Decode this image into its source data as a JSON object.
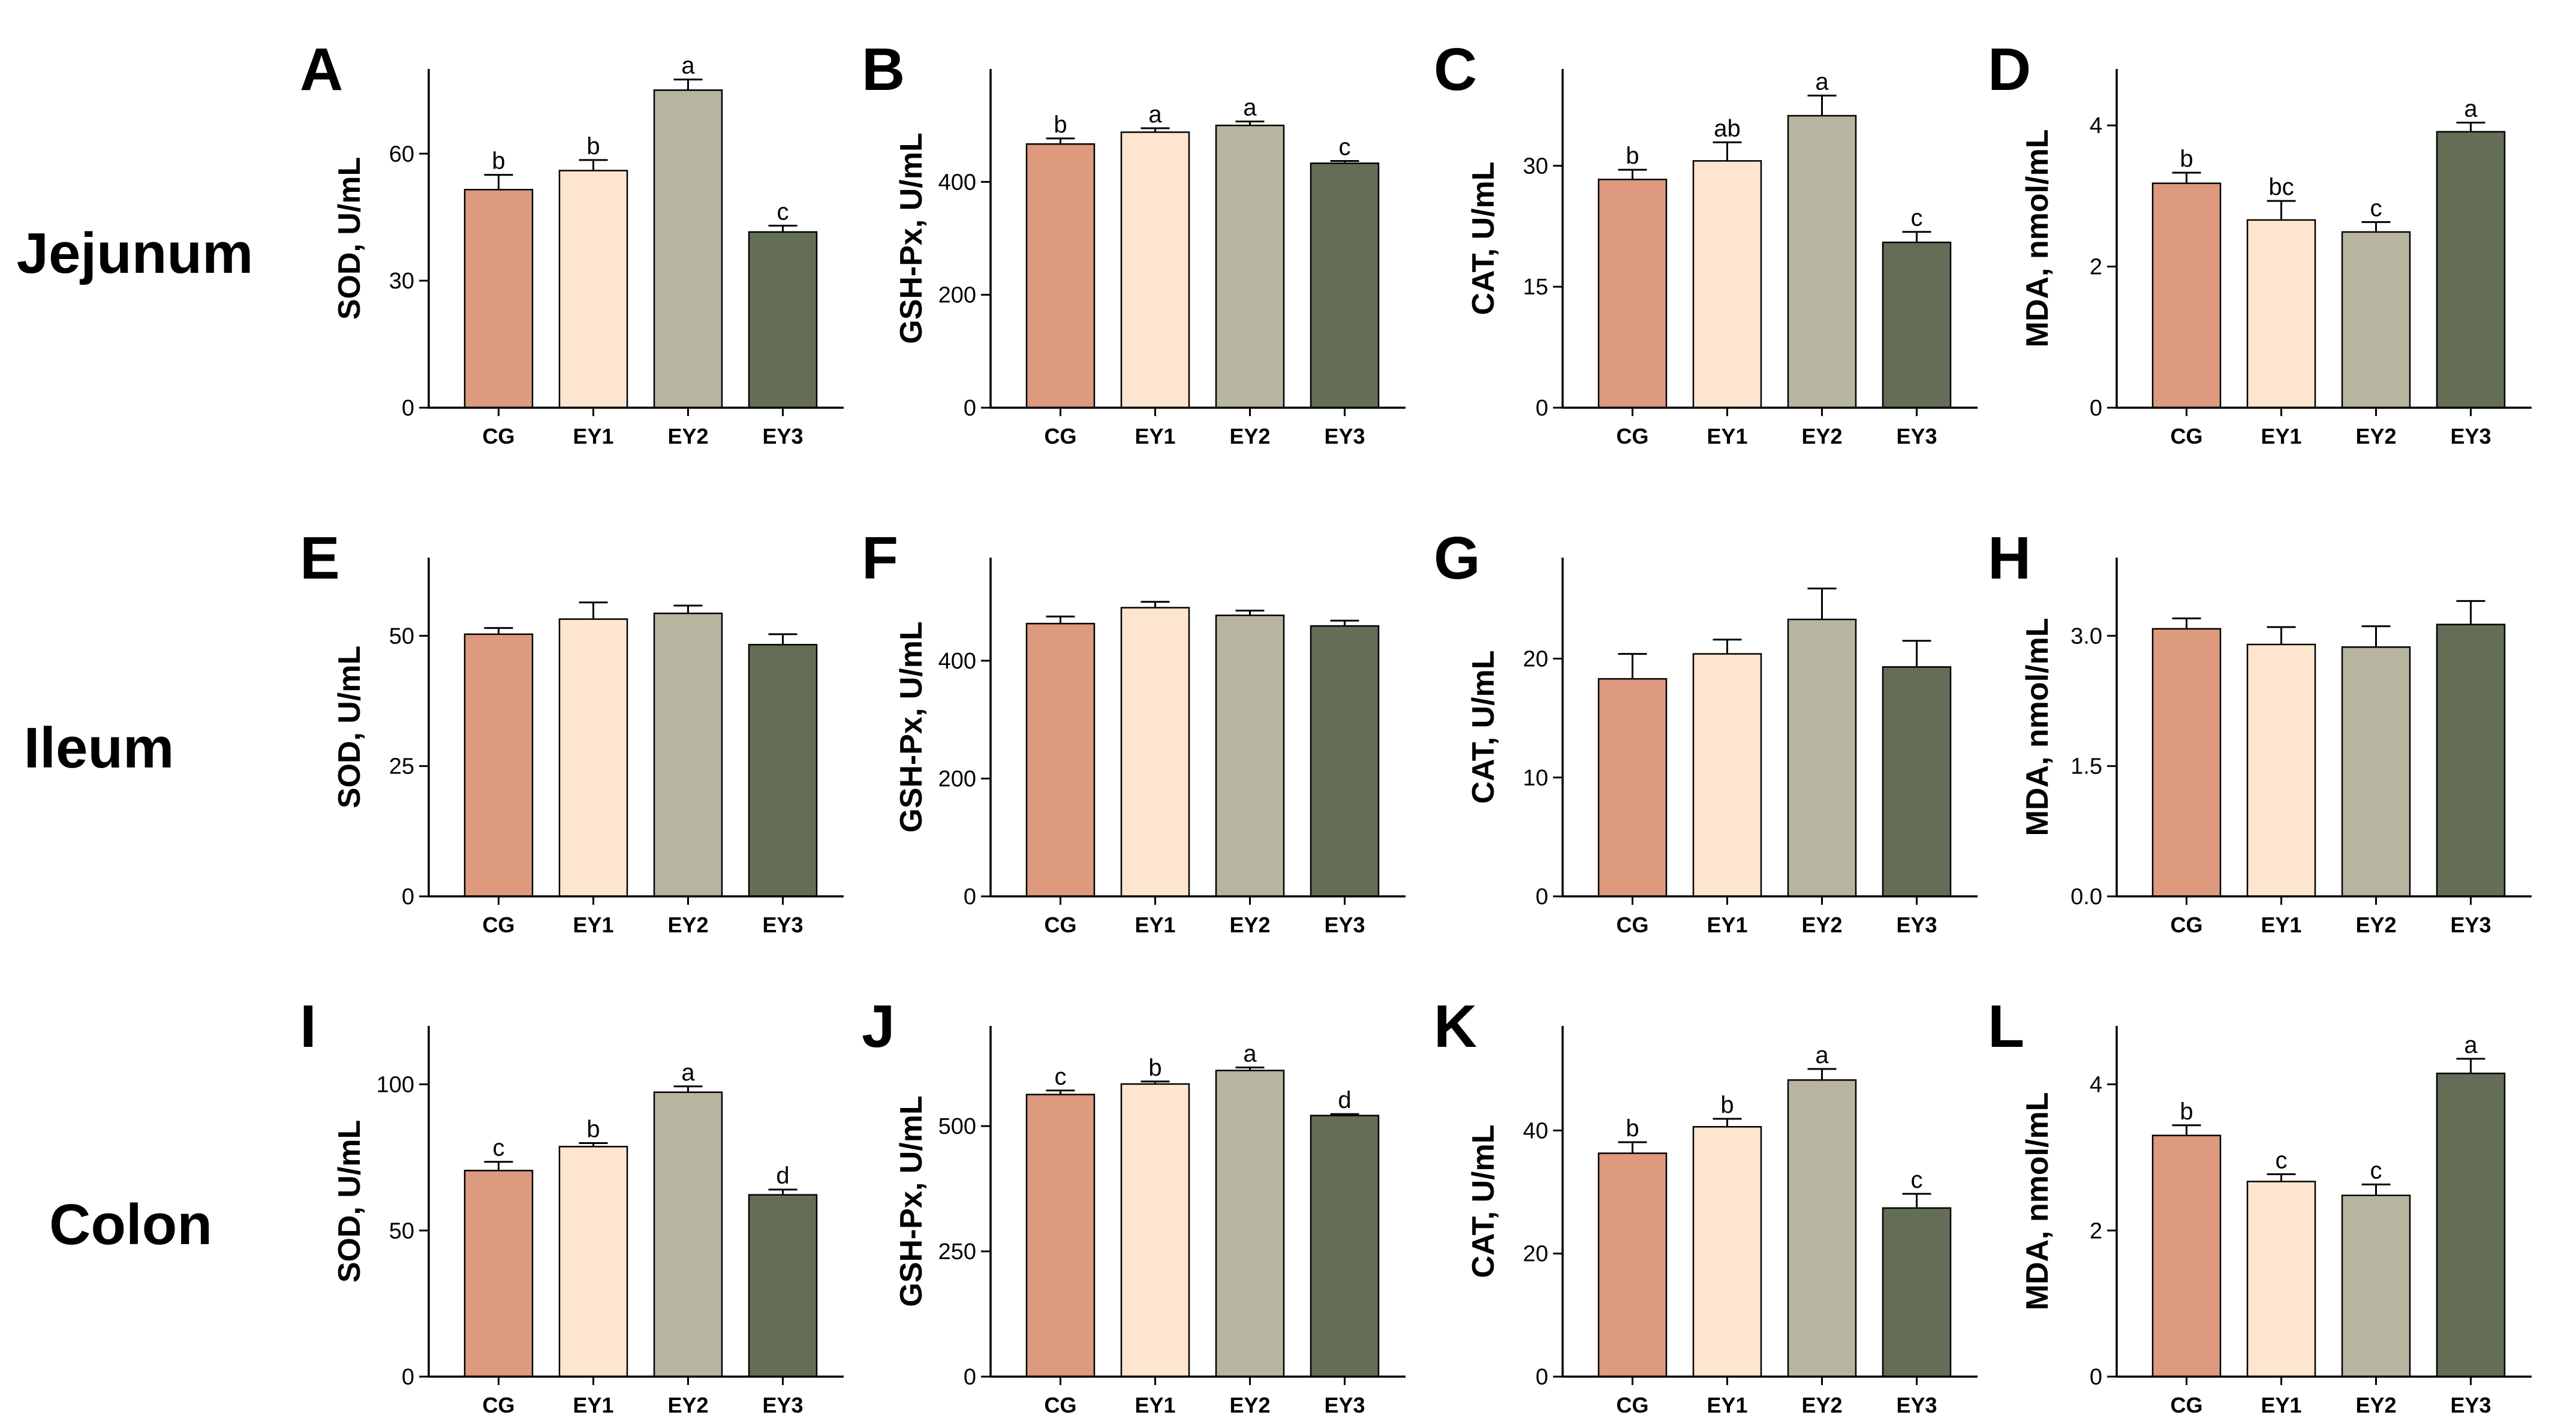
{
  "colors": {
    "CG": "#dd9a7e",
    "EY1": "#fde5cf",
    "EY2": "#b7b5a0",
    "EY3": "#646e56",
    "outline": "#000000"
  },
  "rows": [
    {
      "label": "Jejunum",
      "row": 0
    },
    {
      "label": "Ileum",
      "row": 1
    },
    {
      "label": "Colon",
      "row": 2
    }
  ],
  "chart_data": [
    {
      "type": "bar",
      "panel": "A",
      "row": 0,
      "col": 0,
      "ylabel": "SOD, U/mL",
      "categories": [
        "CG",
        "EY1",
        "EY2",
        "EY3"
      ],
      "values": [
        51.5,
        56,
        75,
        41.5
      ],
      "errors": [
        3.5,
        2.5,
        2.5,
        1.5
      ],
      "letters": [
        "b",
        "b",
        "a",
        "c"
      ],
      "ylim": [
        0,
        80
      ],
      "yticks": [
        0,
        30,
        60
      ],
      "ytick_labels": [
        "0",
        "30",
        "60"
      ]
    },
    {
      "type": "bar",
      "panel": "B",
      "row": 0,
      "col": 1,
      "ylabel": "GSH-Px, U/mL",
      "categories": [
        "CG",
        "EY1",
        "EY2",
        "EY3"
      ],
      "values": [
        467,
        488,
        500,
        433
      ],
      "errors": [
        10,
        7,
        7,
        4
      ],
      "letters": [
        "b",
        "a",
        "a",
        "c"
      ],
      "ylim": [
        0,
        600
      ],
      "yticks": [
        0,
        200,
        400
      ],
      "ytick_labels": [
        "0",
        "200",
        "400"
      ]
    },
    {
      "type": "bar",
      "panel": "C",
      "row": 0,
      "col": 2,
      "ylabel": "CAT, U/mL",
      "categories": [
        "CG",
        "EY1",
        "EY2",
        "EY3"
      ],
      "values": [
        28.3,
        30.6,
        36.2,
        20.5
      ],
      "errors": [
        1.2,
        2.3,
        2.5,
        1.3
      ],
      "letters": [
        "b",
        "ab",
        "a",
        "c"
      ],
      "ylim": [
        0,
        42
      ],
      "yticks": [
        0,
        15,
        30
      ],
      "ytick_labels": [
        "0",
        "15",
        "30"
      ]
    },
    {
      "type": "bar",
      "panel": "D",
      "row": 0,
      "col": 3,
      "ylabel": "MDA, nmol/mL",
      "categories": [
        "CG",
        "EY1",
        "EY2",
        "EY3"
      ],
      "values": [
        3.18,
        2.66,
        2.49,
        3.91
      ],
      "errors": [
        0.15,
        0.27,
        0.14,
        0.13
      ],
      "letters": [
        "b",
        "bc",
        "c",
        "a"
      ],
      "ylim": [
        0,
        4.8
      ],
      "yticks": [
        0,
        2,
        4
      ],
      "ytick_labels": [
        "0",
        "2",
        "4"
      ]
    },
    {
      "type": "bar",
      "panel": "E",
      "row": 1,
      "col": 0,
      "ylabel": "SOD, U/mL",
      "categories": [
        "CG",
        "EY1",
        "EY2",
        "EY3"
      ],
      "values": [
        50.3,
        53.2,
        54.3,
        48.3
      ],
      "errors": [
        1.2,
        3.2,
        1.5,
        2.0
      ],
      "letters": [
        "",
        "",
        "",
        ""
      ],
      "ylim": [
        0,
        65
      ],
      "yticks": [
        0,
        25,
        50
      ],
      "ytick_labels": [
        "0",
        "25",
        "50"
      ]
    },
    {
      "type": "bar",
      "panel": "F",
      "row": 1,
      "col": 1,
      "ylabel": "GSH-Px, U/mL",
      "categories": [
        "CG",
        "EY1",
        "EY2",
        "EY3"
      ],
      "values": [
        463,
        490,
        477,
        459
      ],
      "errors": [
        12,
        10,
        8,
        9
      ],
      "letters": [
        "",
        "",
        "",
        ""
      ],
      "ylim": [
        0,
        575
      ],
      "yticks": [
        0,
        200,
        400
      ],
      "ytick_labels": [
        "0",
        "200",
        "400"
      ]
    },
    {
      "type": "bar",
      "panel": "G",
      "row": 1,
      "col": 2,
      "ylabel": "CAT, U/mL",
      "categories": [
        "CG",
        "EY1",
        "EY2",
        "EY3"
      ],
      "values": [
        18.3,
        20.4,
        23.3,
        19.3
      ],
      "errors": [
        2.1,
        1.2,
        2.6,
        2.2
      ],
      "letters": [
        "",
        "",
        "",
        ""
      ],
      "ylim": [
        0,
        28.5
      ],
      "yticks": [
        0,
        10,
        20
      ],
      "ytick_labels": [
        "0",
        "10",
        "20"
      ]
    },
    {
      "type": "bar",
      "panel": "H",
      "row": 1,
      "col": 3,
      "ylabel": "MDA, nmol/mL",
      "categories": [
        "CG",
        "EY1",
        "EY2",
        "EY3"
      ],
      "values": [
        3.08,
        2.9,
        2.87,
        3.13
      ],
      "errors": [
        0.12,
        0.2,
        0.24,
        0.27
      ],
      "letters": [
        "",
        "",
        "",
        ""
      ],
      "ylim": [
        0,
        3.9
      ],
      "yticks": [
        0,
        1.5,
        3
      ],
      "ytick_labels": [
        "0.0",
        "1.5",
        "3.0"
      ]
    },
    {
      "type": "bar",
      "panel": "I",
      "row": 2,
      "col": 0,
      "ylabel": "SOD, U/mL",
      "categories": [
        "CG",
        "EY1",
        "EY2",
        "EY3"
      ],
      "values": [
        70.5,
        78.7,
        97.3,
        62.2
      ],
      "errors": [
        3.0,
        1.2,
        2.0,
        1.8
      ],
      "letters": [
        "c",
        "b",
        "a",
        "d"
      ],
      "ylim": [
        0,
        120
      ],
      "yticks": [
        0,
        50,
        100
      ],
      "ytick_labels": [
        "0",
        "50",
        "100"
      ]
    },
    {
      "type": "bar",
      "panel": "J",
      "row": 2,
      "col": 1,
      "ylabel": "GSH-Px, U/mL",
      "categories": [
        "CG",
        "EY1",
        "EY2",
        "EY3"
      ],
      "values": [
        563,
        584,
        611,
        521
      ],
      "errors": [
        8,
        5,
        6,
        3
      ],
      "letters": [
        "c",
        "b",
        "a",
        "d"
      ],
      "ylim": [
        0,
        700
      ],
      "yticks": [
        0,
        250,
        500
      ],
      "ytick_labels": [
        "0",
        "250",
        "500"
      ]
    },
    {
      "type": "bar",
      "panel": "K",
      "row": 2,
      "col": 2,
      "ylabel": "CAT, U/mL",
      "categories": [
        "CG",
        "EY1",
        "EY2",
        "EY3"
      ],
      "values": [
        36.3,
        40.6,
        48.2,
        27.4
      ],
      "errors": [
        1.8,
        1.3,
        1.8,
        2.3
      ],
      "letters": [
        "b",
        "b",
        "a",
        "c"
      ],
      "ylim": [
        0,
        57
      ],
      "yticks": [
        0,
        20,
        40
      ],
      "ytick_labels": [
        "0",
        "20",
        "40"
      ]
    },
    {
      "type": "bar",
      "panel": "L",
      "row": 2,
      "col": 3,
      "ylabel": "MDA, nmol/mL",
      "categories": [
        "CG",
        "EY1",
        "EY2",
        "EY3"
      ],
      "values": [
        3.3,
        2.67,
        2.48,
        4.15
      ],
      "errors": [
        0.14,
        0.1,
        0.15,
        0.2
      ],
      "letters": [
        "b",
        "c",
        "c",
        "a"
      ],
      "ylim": [
        0,
        4.8
      ],
      "yticks": [
        0,
        2,
        4
      ],
      "ytick_labels": [
        "0",
        "2",
        "4"
      ]
    }
  ]
}
